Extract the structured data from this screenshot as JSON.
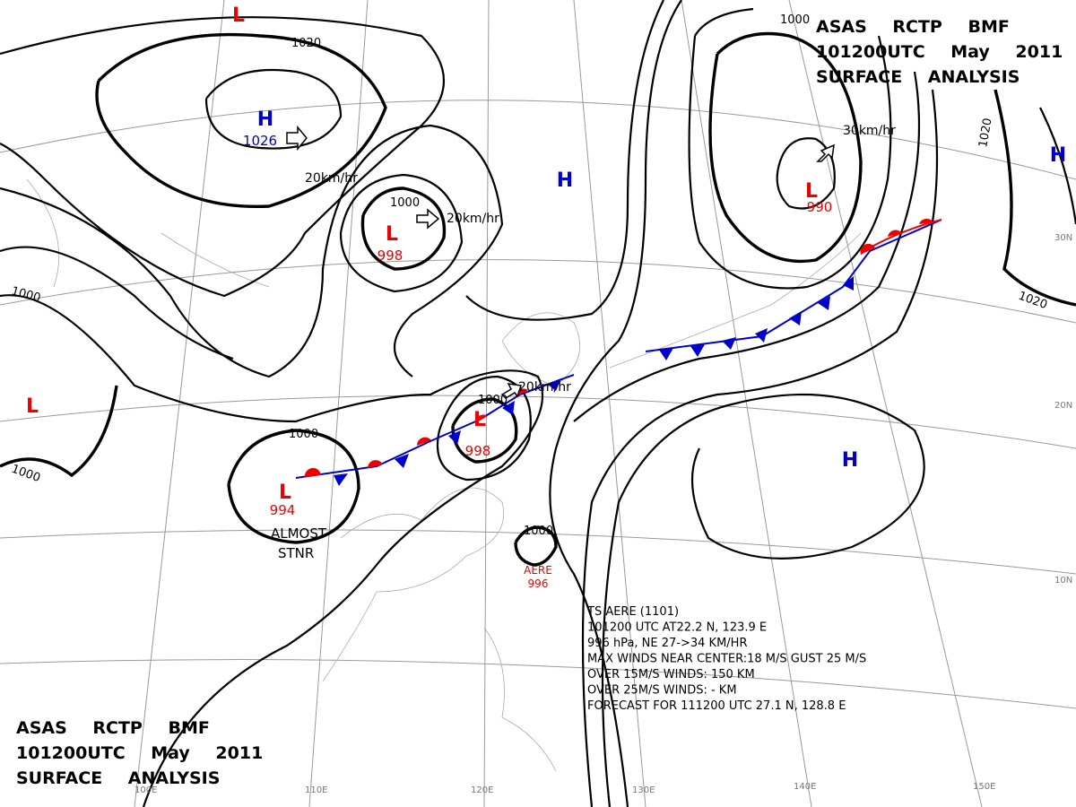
{
  "header": {
    "lines": [
      "ASAS RCTP BMF",
      "101200UTC May 2011",
      "SURFACE ANALYSIS"
    ]
  },
  "pressure_systems": [
    {
      "type": "H",
      "value": 1026
    },
    {
      "type": "L",
      "value": 998
    },
    {
      "type": "L",
      "value": 990
    },
    {
      "type": "L",
      "value": 998
    },
    {
      "type": "L",
      "value": 994
    },
    {
      "type": "H"
    },
    {
      "type": "H"
    },
    {
      "type": "H"
    },
    {
      "type": "L"
    },
    {
      "type": "L"
    }
  ],
  "isobar_labels": [
    1020,
    1000,
    1000,
    1000,
    1000,
    1000,
    1020,
    1020,
    1000,
    1000
  ],
  "motion_labels": [
    "20km/hr",
    "20km/hr",
    "20km/hr",
    "30km/hr"
  ],
  "latitude_labels": [
    "30N",
    "20N",
    "10N"
  ],
  "longitude_labels": [
    "100E",
    "110E",
    "120E",
    "130E",
    "140E",
    "150E"
  ],
  "annotation": [
    "ALMOST",
    "STNR"
  ],
  "storm": {
    "name": "AERE",
    "pressure": 996,
    "info": [
      "TS AERE (1101)",
      "101200 UTC AT22.2 N, 123.9 E",
      "996 hPa, NE 27->34 KM/HR",
      "MAX WINDS NEAR CENTER:18 M/S GUST 25 M/S",
      "OVER 15M/S WINDS: 150 KM",
      "OVER 25M/S WINDS: - KM",
      "FORECAST FOR 111200 UTC 27.1 N, 128.8 E"
    ]
  }
}
